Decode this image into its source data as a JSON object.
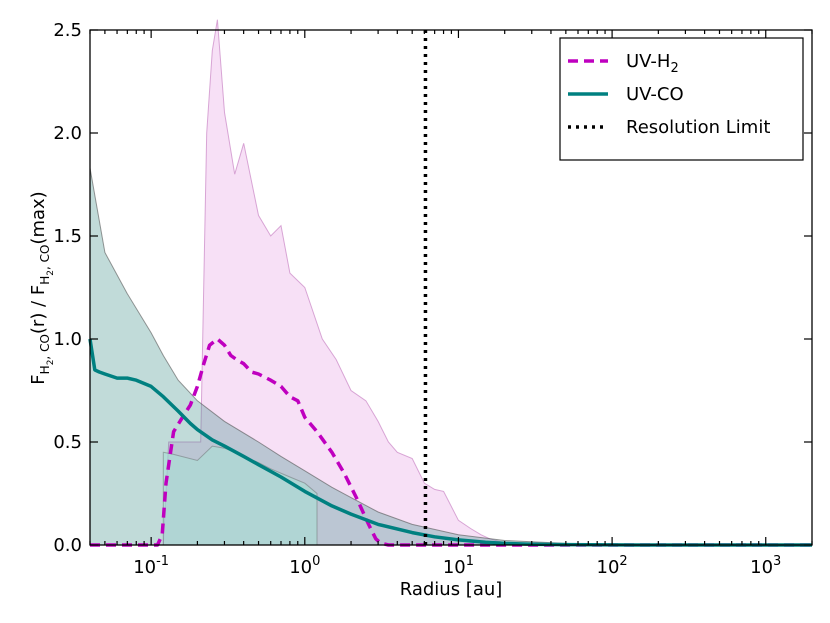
{
  "chart_data": {
    "type": "line",
    "title": "",
    "xlabel": "Radius [au]",
    "ylabel": "F_{H2,CO}(r) / F_{H2,CO}(max)",
    "xscale": "log",
    "xlim": [
      0.04,
      2000
    ],
    "ylim": [
      0.0,
      2.5
    ],
    "y_ticks": [
      "0.0",
      "0.5",
      "1.0",
      "1.5",
      "2.0",
      "2.5"
    ],
    "x_ticks": [
      {
        "base": "10",
        "exp": "-1"
      },
      {
        "base": "10",
        "exp": "0"
      },
      {
        "base": "10",
        "exp": "1"
      },
      {
        "base": "10",
        "exp": "2"
      },
      {
        "base": "10",
        "exp": "3"
      }
    ],
    "legend_position": "top-right",
    "legend": [
      {
        "label": "UV-H",
        "sub": "2",
        "style": "dashed",
        "color": "#bf00bf"
      },
      {
        "label": "UV-CO",
        "sub": "",
        "style": "solid",
        "color": "#008080"
      },
      {
        "label": "Resolution Limit",
        "sub": "",
        "style": "dotted",
        "color": "#000000"
      }
    ],
    "resolution_limit_x": 6.1,
    "series": [
      {
        "name": "UV-H2",
        "color": "#bf00bf",
        "style": "dashed",
        "x": [
          0.04,
          0.11,
          0.118,
          0.125,
          0.14,
          0.16,
          0.18,
          0.2,
          0.22,
          0.24,
          0.27,
          0.3,
          0.33,
          0.36,
          0.4,
          0.45,
          0.5,
          0.6,
          0.7,
          0.8,
          0.9,
          1.0,
          1.2,
          1.5,
          1.8,
          2.2,
          2.6,
          2.9,
          3.1,
          3.5,
          6,
          10,
          20,
          2000
        ],
        "y": [
          0.0,
          0.0,
          0.05,
          0.3,
          0.55,
          0.62,
          0.68,
          0.77,
          0.88,
          0.97,
          1.0,
          0.97,
          0.92,
          0.9,
          0.88,
          0.84,
          0.83,
          0.8,
          0.77,
          0.72,
          0.7,
          0.62,
          0.55,
          0.45,
          0.35,
          0.22,
          0.1,
          0.03,
          0.01,
          0.0,
          0.0,
          0.0,
          0.0,
          0.0
        ]
      },
      {
        "name": "UV-H2 range",
        "color": "#e9a5e4",
        "style": "band",
        "x": [
          0.04,
          0.1,
          0.12,
          0.13,
          0.15,
          0.17,
          0.19,
          0.21,
          0.23,
          0.25,
          0.27,
          0.3,
          0.35,
          0.4,
          0.5,
          0.6,
          0.7,
          0.8,
          1.0,
          1.3,
          1.6,
          2.0,
          2.5,
          3.0,
          3.5,
          4.0,
          5.0,
          6.0,
          7.0,
          8.0,
          10,
          12,
          14,
          16,
          20,
          30,
          50,
          2000
        ],
        "upper": [
          0.0,
          0.0,
          0.0,
          0.5,
          0.5,
          0.5,
          0.5,
          0.5,
          2.0,
          2.4,
          2.55,
          2.1,
          1.8,
          1.95,
          1.6,
          1.5,
          1.55,
          1.32,
          1.25,
          1.0,
          0.9,
          0.75,
          0.7,
          0.6,
          0.5,
          0.45,
          0.42,
          0.3,
          0.27,
          0.26,
          0.12,
          0.08,
          0.05,
          0.03,
          0.01,
          0.0,
          0.0,
          0.0
        ],
        "lower": [
          0.0,
          0.0,
          0.0,
          0.0,
          0.0,
          0.0,
          0.0,
          0.0,
          0.0,
          0.0,
          0.0,
          0.0,
          0.0,
          0.0,
          0.0,
          0.0,
          0.0,
          0.0,
          0.0,
          0.0,
          0.0,
          0.0,
          0.0,
          0.0,
          0.0,
          0.0,
          0.0,
          0.0,
          0.0,
          0.0,
          0.0,
          0.0,
          0.0,
          0.0,
          0.0,
          0.0,
          0.0,
          0.0
        ]
      },
      {
        "name": "UV-CO",
        "color": "#008080",
        "style": "solid",
        "x": [
          0.04,
          0.043,
          0.046,
          0.05,
          0.06,
          0.07,
          0.08,
          0.1,
          0.12,
          0.15,
          0.18,
          0.2,
          0.25,
          0.3,
          0.4,
          0.5,
          0.7,
          1.0,
          1.5,
          2.0,
          3.0,
          5.0,
          7.0,
          10,
          15,
          20,
          30,
          50,
          100,
          200,
          2000
        ],
        "y": [
          1.0,
          0.85,
          0.84,
          0.83,
          0.81,
          0.81,
          0.8,
          0.77,
          0.72,
          0.65,
          0.59,
          0.56,
          0.51,
          0.48,
          0.43,
          0.39,
          0.33,
          0.26,
          0.19,
          0.15,
          0.1,
          0.06,
          0.04,
          0.025,
          0.013,
          0.008,
          0.004,
          0.002,
          0.0005,
          0.0,
          0.0
        ]
      },
      {
        "name": "UV-CO range",
        "color": "#3f8f8a",
        "style": "band",
        "x": [
          0.04,
          0.05,
          0.07,
          0.1,
          0.12,
          0.15,
          0.2,
          0.3,
          0.5,
          0.7,
          1.0,
          1.5,
          2.0,
          3.0,
          5.0,
          10,
          20,
          50,
          100,
          200,
          2000
        ],
        "upper": [
          1.83,
          1.42,
          1.22,
          1.03,
          0.92,
          0.8,
          0.7,
          0.6,
          0.5,
          0.43,
          0.36,
          0.28,
          0.23,
          0.16,
          0.1,
          0.05,
          0.022,
          0.008,
          0.002,
          0.0,
          0.0
        ],
        "lower": [
          0.0,
          0.0,
          0.0,
          0.0,
          0.0,
          0.0,
          0.0,
          0.0,
          0.0,
          0.0,
          0.0,
          0.0,
          0.0,
          0.0,
          0.0,
          0.0,
          0.0,
          0.0,
          0.0,
          0.0,
          0.0
        ]
      },
      {
        "name": "UV-CO lower envelope",
        "color": "#a8e0d6",
        "style": "band",
        "x": [
          0.12,
          0.14,
          0.2,
          0.25,
          0.3,
          0.35,
          0.4,
          0.5,
          0.6,
          0.8,
          1.0,
          1.2
        ],
        "upper": [
          0.45,
          0.44,
          0.41,
          0.48,
          0.47,
          0.45,
          0.43,
          0.4,
          0.37,
          0.33,
          0.3,
          0.25
        ],
        "lower": [
          0.0,
          0.0,
          0.0,
          0.0,
          0.0,
          0.0,
          0.0,
          0.0,
          0.0,
          0.0,
          0.0,
          0.0
        ]
      }
    ]
  }
}
